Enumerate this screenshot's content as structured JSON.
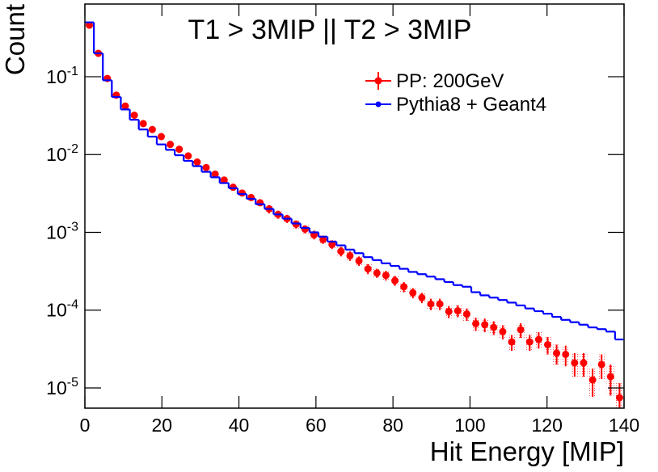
{
  "chart_data": {
    "type": "histogram",
    "title": "T1 > 3MIP || T2 > 3MIP",
    "xlabel": "Hit Energy [MIP]",
    "ylabel": "Count",
    "log_y": true,
    "legend": "top-right",
    "xlim": [
      0,
      140
    ],
    "xticks": [
      0,
      20,
      40,
      60,
      80,
      100,
      120,
      140
    ],
    "ylim": [
      5.5e-06,
      0.86
    ],
    "yticks": [
      {
        "value": 1e-05,
        "label": "10^{-5}"
      },
      {
        "value": 0.0001,
        "label": "10^{-4}"
      },
      {
        "value": 0.001,
        "label": "10^{-3}"
      },
      {
        "value": 0.01,
        "label": "10^{-2}"
      },
      {
        "value": 0.1,
        "label": "10^{-1}"
      }
    ],
    "bins": [
      0,
      2.333,
      4.667,
      7,
      9.333,
      11.667,
      14,
      16.333,
      18.667,
      21,
      23.333,
      25.667,
      28,
      30.333,
      32.667,
      35,
      37.333,
      39.667,
      42,
      44.333,
      46.667,
      49,
      51.333,
      53.667,
      56,
      58.333,
      60.667,
      63,
      65.333,
      67.667,
      70,
      72.333,
      74.667,
      77,
      79.333,
      81.667,
      84,
      86.333,
      88.667,
      91,
      93.333,
      95.667,
      98,
      100.333,
      102.667,
      105,
      107.333,
      109.667,
      112,
      114.333,
      116.667,
      119,
      121.333,
      123.667,
      126,
      128.333,
      130.667,
      133,
      135.333,
      137.667,
      140
    ],
    "series": [
      {
        "name": "PP: 200GeV",
        "color": "#ff0000",
        "style": "points",
        "values": [
          0.46,
          0.2,
          0.095,
          0.058,
          0.042,
          0.032,
          0.025,
          0.021,
          0.017,
          0.0135,
          0.0117,
          0.0096,
          0.008,
          0.0068,
          0.0056,
          0.0047,
          0.0038,
          0.0032,
          0.0028,
          0.0024,
          0.002,
          0.0017,
          0.0015,
          0.00127,
          0.0011,
          0.00093,
          0.00081,
          0.0007,
          0.00057,
          0.0005,
          0.00043,
          0.00034,
          0.0003,
          0.00028,
          0.00024,
          0.0002,
          0.000167,
          0.000145,
          0.00012,
          0.00012,
          9.6e-05,
          9.8e-05,
          8.9e-05,
          6.7e-05,
          6.5e-05,
          6e-05,
          5.3e-05,
          3.9e-05,
          5.6e-05,
          3.9e-05,
          4.2e-05,
          3.6e-05,
          2.8e-05,
          2.7e-05,
          2.1e-05,
          2.1e-05,
          1.27e-05,
          2e-05,
          1.4e-05,
          7.5e-06
        ],
        "errors": [
          0.005,
          0.002,
          0.001,
          0.0006,
          0.0004,
          0.0003,
          0.0003,
          0.0002,
          0.0002,
          0.00015,
          0.00013,
          0.0001,
          9e-05,
          8e-05,
          7e-05,
          6e-05,
          5e-05,
          4e-05,
          4e-05,
          3e-05,
          0.00025,
          0.0002,
          0.00018,
          0.00015,
          0.00013,
          0.00012,
          0.0001,
          9e-05,
          8e-05,
          7e-05,
          6e-05,
          5e-05,
          4e-05,
          4e-05,
          3.5e-05,
          3e-05,
          2.5e-05,
          2.2e-05,
          2e-05,
          2e-05,
          1.7e-05,
          1.7e-05,
          1.6e-05,
          1.3e-05,
          1.3e-05,
          1.2e-05,
          1.1e-05,
          9e-06,
          1.2e-05,
          9e-06,
          1e-05,
          9e-06,
          8e-06,
          8e-06,
          7e-06,
          7e-06,
          5e-06,
          7e-06,
          6e-06,
          4e-06
        ]
      },
      {
        "name": "Pythia8 + Geant4",
        "color": "#0000ff",
        "style": "step",
        "values": [
          0.5,
          0.2,
          0.09,
          0.055,
          0.038,
          0.028,
          0.021,
          0.017,
          0.0135,
          0.0115,
          0.0098,
          0.0083,
          0.0071,
          0.006,
          0.0051,
          0.0043,
          0.0037,
          0.0031,
          0.0027,
          0.0023,
          0.002,
          0.0017,
          0.0015,
          0.0013,
          0.00114,
          0.001,
          0.00088,
          0.00076,
          0.00068,
          0.0006,
          0.00054,
          0.00048,
          0.00044,
          0.0004,
          0.00037,
          0.00034,
          0.00031,
          0.00029,
          0.00027,
          0.00025,
          0.00023,
          0.00021,
          0.0002,
          0.00017,
          0.000155,
          0.000145,
          0.000135,
          0.000125,
          0.000115,
          0.000105,
          9.7e-05,
          9e-05,
          8.2e-05,
          7.5e-05,
          7e-05,
          6.5e-05,
          6e-05,
          5.7e-05,
          5.3e-05,
          4.2e-05
        ]
      }
    ]
  }
}
